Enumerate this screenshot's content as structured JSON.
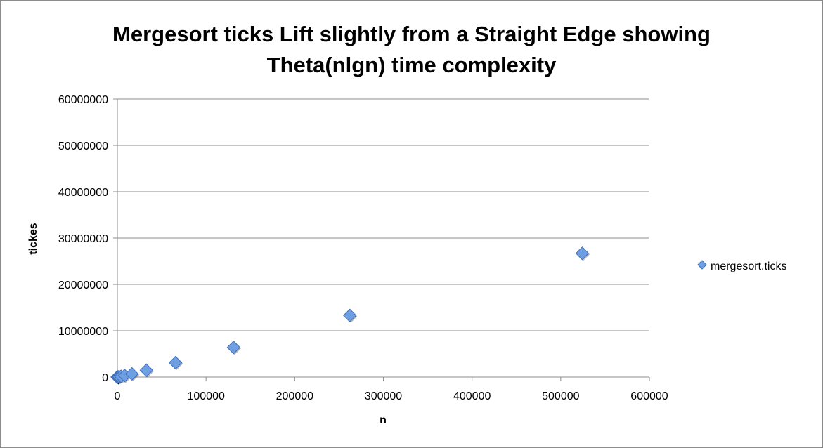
{
  "chart_data": {
    "type": "scatter",
    "title": "Mergesort ticks Lift slightly from a Straight Edge showing Theta(nlgn) time complexity",
    "title_lines": [
      "Mergesort ticks Lift slightly from a Straight Edge showing",
      "Theta(nlgn) time complexity"
    ],
    "xlabel": "n",
    "ylabel": "tickes",
    "xlim": [
      0,
      600000
    ],
    "ylim": [
      0,
      60000000
    ],
    "x_ticks": [
      "0",
      "100000",
      "200000",
      "300000",
      "400000",
      "500000",
      "600000"
    ],
    "y_ticks": [
      "0",
      "10000000",
      "20000000",
      "30000000",
      "40000000",
      "50000000",
      "60000000"
    ],
    "x_tick_values": [
      0,
      100000,
      200000,
      300000,
      400000,
      500000,
      600000
    ],
    "y_tick_values": [
      0,
      10000000,
      20000000,
      30000000,
      40000000,
      50000000,
      60000000
    ],
    "grid": "horizontal",
    "legend_position": "right",
    "series": [
      {
        "name": "mergesort.ticks",
        "color": "#6f9fe3",
        "marker": "diamond",
        "x": [
          2,
          4,
          8,
          16,
          32,
          64,
          128,
          256,
          512,
          1024,
          2048,
          4096,
          8192,
          16384,
          32768,
          65536,
          131072,
          262144,
          524288
        ],
        "y": [
          10,
          30,
          80,
          200,
          500,
          1200,
          2800,
          6300,
          14000,
          31000,
          68000,
          150000,
          320000,
          690000,
          1480000,
          3100000,
          6400000,
          13300000,
          26700000
        ]
      }
    ]
  }
}
